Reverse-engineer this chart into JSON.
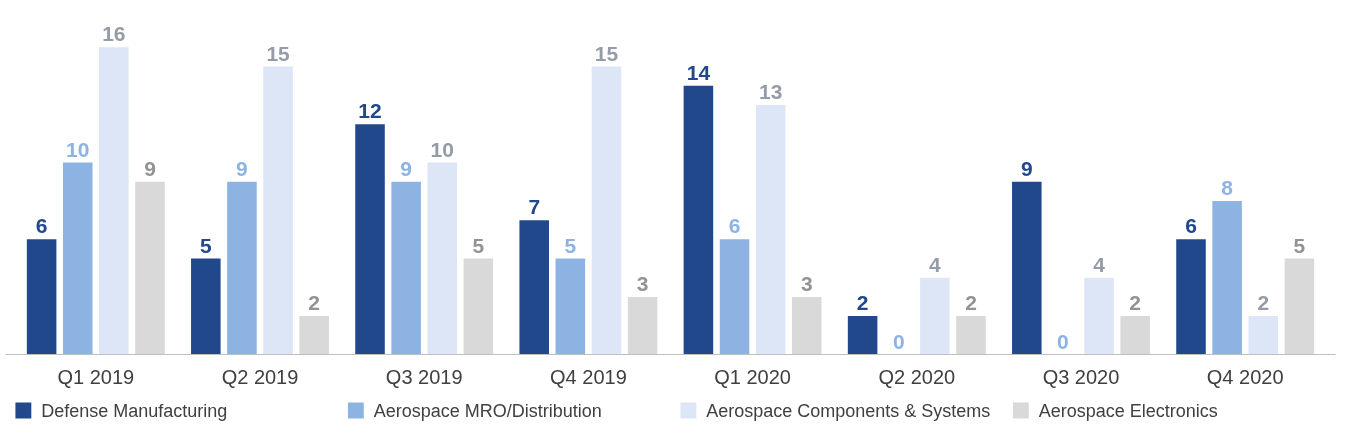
{
  "chart_data": {
    "type": "bar",
    "categories": [
      "Q1 2019",
      "Q2 2019",
      "Q3 2019",
      "Q4 2019",
      "Q1 2020",
      "Q2 2020",
      "Q3 2020",
      "Q4 2020"
    ],
    "series": [
      {
        "name": "Defense Manufacturing",
        "color": "#22488c",
        "values": [
          6,
          5,
          12,
          7,
          14,
          2,
          9,
          6
        ]
      },
      {
        "name": "Aerospace MRO/Distribution",
        "color": "#8db3e2",
        "values": [
          10,
          9,
          9,
          5,
          6,
          0,
          0,
          8
        ]
      },
      {
        "name": "Aerospace Components & Systems",
        "color": "#dce6f6",
        "values": [
          16,
          15,
          10,
          15,
          13,
          4,
          4,
          2
        ]
      },
      {
        "name": "Aerospace Electronics",
        "color": "#d9d9d9",
        "values": [
          9,
          2,
          5,
          3,
          3,
          2,
          2,
          5
        ]
      }
    ],
    "data_labels": true,
    "legend": "bottom"
  }
}
